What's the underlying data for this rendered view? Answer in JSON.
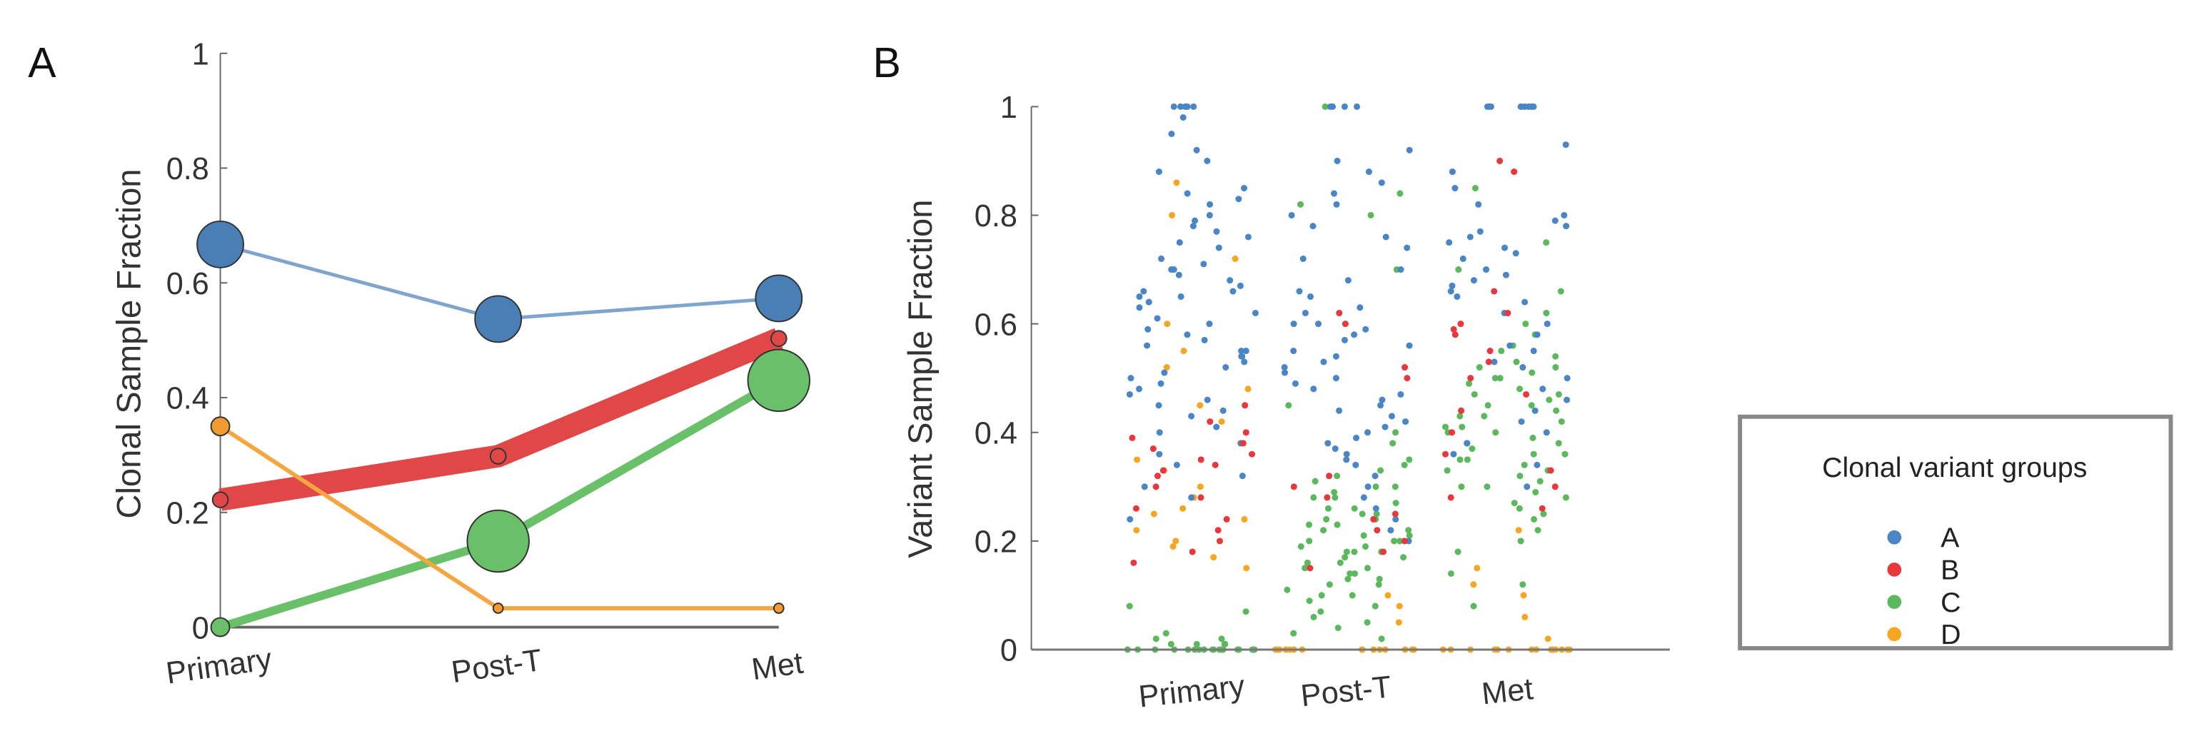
{
  "chart_data": [
    {
      "panel": "A",
      "type": "line",
      "ylabel": "Clonal Sample Fraction",
      "xlabel": "",
      "ylim": [
        0,
        1
      ],
      "yticks": [
        "0",
        "0.2",
        "0.4",
        "0.6",
        "0.8",
        "1"
      ],
      "yticks_values": [
        0,
        0.2,
        0.4,
        0.6,
        0.8,
        1
      ],
      "categories": [
        "Primary",
        "Post-T",
        "Met"
      ],
      "series": [
        {
          "name": "A",
          "color": "#4a7fb5",
          "line_color": "#7fa5cc",
          "values": [
            0.667,
            0.537,
            0.573
          ],
          "marker_weight": [
            3,
            3,
            3
          ],
          "line_weight": 1
        },
        {
          "name": "B",
          "color": "#e04848",
          "line_color": "#e04848",
          "values": [
            0.222,
            0.298,
            0.503
          ],
          "marker_weight": [
            1,
            1,
            1
          ],
          "line_weight": 6
        },
        {
          "name": "C",
          "color": "#6abf69",
          "line_color": "#6abf69",
          "values": [
            0.0,
            0.15,
            0.43
          ],
          "marker_weight": [
            1.2,
            4,
            4
          ],
          "line_weight": 3
        },
        {
          "name": "D",
          "color": "#f29b30",
          "line_color": "#f5a640",
          "values": [
            0.35,
            0.033,
            0.033
          ],
          "marker_weight": [
            1.2,
            0.6,
            0.6
          ],
          "line_weight": 1.5
        }
      ]
    },
    {
      "panel": "B",
      "type": "scatter",
      "ylabel": "Variant Sample Fraction",
      "ylim": [
        0,
        1
      ],
      "yticks": [
        "0",
        "0.2",
        "0.4",
        "0.6",
        "0.8",
        "1"
      ],
      "yticks_values": [
        0,
        0.2,
        0.4,
        0.6,
        0.8,
        1
      ],
      "categories": [
        "Primary",
        "Post-T",
        "Met"
      ],
      "legend": {
        "title": "Clonal variant groups",
        "placement": "right",
        "entries": [
          "A",
          "B",
          "C",
          "D"
        ]
      },
      "group_colors": {
        "A": "#4a86c5",
        "B": "#e8383d",
        "C": "#5cb85c",
        "D": "#f5a623"
      },
      "points": {
        "Primary": {
          "A": [
            1,
            1,
            1,
            1,
            1,
            0.98,
            0.95,
            0.92,
            0.9,
            0.88,
            0.85,
            0.84,
            0.83,
            0.82,
            0.8,
            0.79,
            0.78,
            0.77,
            0.76,
            0.75,
            0.74,
            0.72,
            0.71,
            0.7,
            0.7,
            0.69,
            0.68,
            0.67,
            0.66,
            0.66,
            0.65,
            0.65,
            0.64,
            0.63,
            0.62,
            0.61,
            0.6,
            0.59,
            0.58,
            0.57,
            0.56,
            0.55,
            0.55,
            0.54,
            0.54,
            0.53,
            0.52,
            0.51,
            0.5,
            0.49,
            0.48,
            0.47,
            0.46,
            0.45,
            0.44,
            0.43,
            0.41,
            0.4,
            0.38,
            0.36,
            0.34,
            0.32,
            0.3,
            0.28,
            0.24
          ],
          "B": [
            0.45,
            0.42,
            0.4,
            0.39,
            0.38,
            0.37,
            0.36,
            0.35,
            0.34,
            0.33,
            0.32,
            0.3,
            0.28,
            0.26,
            0.24,
            0.22,
            0.2,
            0.18,
            0.16
          ],
          "C": [
            0.08,
            0.07,
            0.03,
            0.02,
            0.02,
            0.01,
            0.01,
            0.01,
            0.01,
            0,
            0,
            0,
            0,
            0,
            0,
            0,
            0,
            0,
            0,
            0,
            0,
            0,
            0,
            0,
            0,
            0,
            0,
            0,
            0,
            0
          ],
          "D": [
            0.86,
            0.8,
            0.72,
            0.7,
            0.64,
            0.6,
            0.55,
            0.52,
            0.48,
            0.45,
            0.42,
            0.38,
            0.35,
            0.33,
            0.3,
            0.28,
            0.26,
            0.25,
            0.24,
            0.22,
            0.2,
            0.19,
            0.17,
            0.15
          ]
        },
        "Post-T": {
          "A": [
            1,
            1,
            1,
            1,
            0.92,
            0.9,
            0.88,
            0.86,
            0.84,
            0.82,
            0.8,
            0.78,
            0.76,
            0.74,
            0.72,
            0.7,
            0.68,
            0.66,
            0.65,
            0.63,
            0.62,
            0.6,
            0.6,
            0.59,
            0.58,
            0.57,
            0.56,
            0.55,
            0.54,
            0.53,
            0.52,
            0.51,
            0.5,
            0.49,
            0.48,
            0.47,
            0.46,
            0.45,
            0.44,
            0.43,
            0.42,
            0.41,
            0.4,
            0.39,
            0.38,
            0.37,
            0.36,
            0.35,
            0.34,
            0.32,
            0.3,
            0.28,
            0.26,
            0.24,
            0.22,
            0.2
          ],
          "B": [
            0.62,
            0.6,
            0.52,
            0.5,
            0.32,
            0.3,
            0.28,
            0.25,
            0.24,
            0.22,
            0.2,
            0.18,
            0.15
          ],
          "C": [
            1,
            0.84,
            0.82,
            0.8,
            0.7,
            0.45,
            0.4,
            0.38,
            0.35,
            0.34,
            0.33,
            0.32,
            0.31,
            0.3,
            0.3,
            0.29,
            0.28,
            0.28,
            0.27,
            0.26,
            0.26,
            0.25,
            0.25,
            0.24,
            0.24,
            0.23,
            0.23,
            0.22,
            0.22,
            0.21,
            0.21,
            0.2,
            0.2,
            0.2,
            0.19,
            0.19,
            0.18,
            0.18,
            0.18,
            0.17,
            0.17,
            0.16,
            0.16,
            0.15,
            0.15,
            0.14,
            0.14,
            0.13,
            0.13,
            0.12,
            0.12,
            0.11,
            0.1,
            0.1,
            0.09,
            0.08,
            0.07,
            0.06,
            0.05,
            0.04,
            0.03,
            0.02
          ],
          "D": [
            0.1,
            0.08,
            0.05,
            0,
            0,
            0,
            0,
            0,
            0,
            0,
            0,
            0,
            0,
            0,
            0,
            0,
            0,
            0,
            0,
            0
          ]
        },
        "Met": {
          "A": [
            1,
            1,
            1,
            1,
            1,
            1,
            1,
            1,
            1,
            0.93,
            0.88,
            0.85,
            0.82,
            0.8,
            0.79,
            0.78,
            0.77,
            0.76,
            0.75,
            0.74,
            0.73,
            0.72,
            0.7,
            0.69,
            0.68,
            0.67,
            0.66,
            0.65,
            0.64,
            0.62,
            0.6,
            0.58,
            0.56,
            0.55,
            0.53,
            0.52,
            0.5,
            0.48,
            0.46,
            0.44,
            0.42,
            0.4,
            0.38,
            0.36,
            0.34,
            0.3
          ],
          "B": [
            0.9,
            0.88,
            0.66,
            0.62,
            0.6,
            0.59,
            0.58,
            0.55,
            0.53,
            0.5,
            0.47,
            0.44,
            0.4,
            0.36,
            0.33,
            0.3,
            0.28,
            0.26
          ],
          "C": [
            0.85,
            0.75,
            0.7,
            0.66,
            0.62,
            0.6,
            0.58,
            0.56,
            0.55,
            0.54,
            0.53,
            0.52,
            0.52,
            0.51,
            0.5,
            0.5,
            0.49,
            0.48,
            0.47,
            0.47,
            0.46,
            0.45,
            0.45,
            0.44,
            0.43,
            0.43,
            0.42,
            0.41,
            0.41,
            0.4,
            0.4,
            0.39,
            0.38,
            0.38,
            0.37,
            0.36,
            0.36,
            0.35,
            0.35,
            0.34,
            0.33,
            0.33,
            0.32,
            0.31,
            0.3,
            0.3,
            0.29,
            0.28,
            0.27,
            0.26,
            0.25,
            0.24,
            0.22,
            0.2,
            0.18,
            0.14,
            0.12,
            0.08
          ],
          "D": [
            0.22,
            0.15,
            0.12,
            0.1,
            0.06,
            0.02,
            0,
            0,
            0,
            0,
            0,
            0,
            0,
            0,
            0,
            0,
            0,
            0,
            0,
            0
          ]
        }
      }
    }
  ]
}
